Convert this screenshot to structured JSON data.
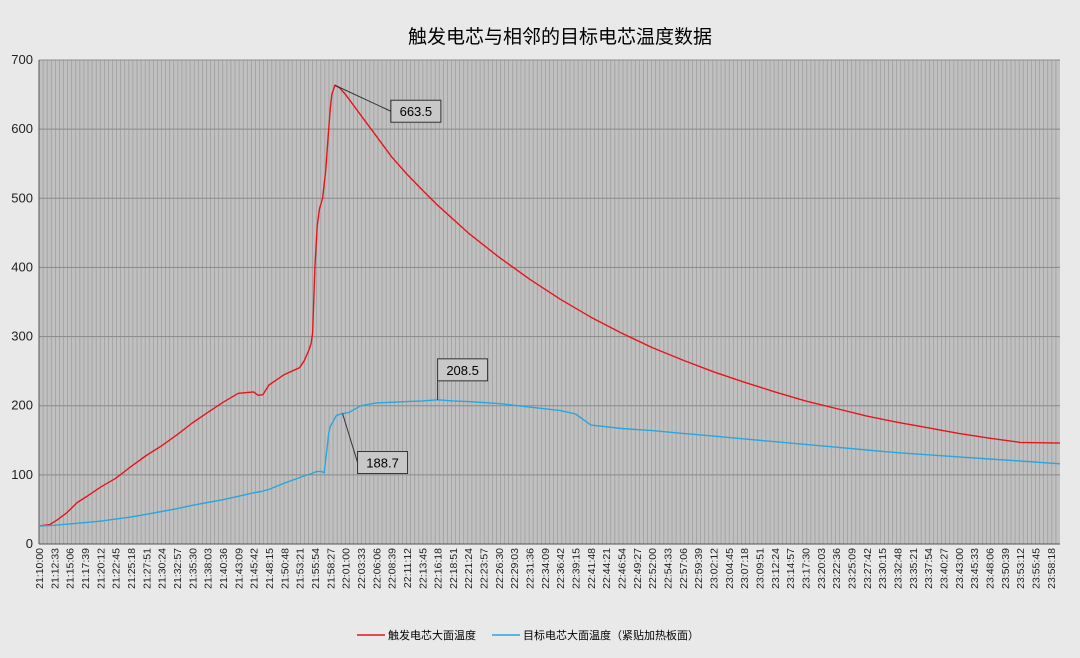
{
  "chart_data": {
    "type": "line",
    "title": "触发电芯与相邻的目标电芯温度数据",
    "xlabel": "",
    "ylabel": "",
    "ylim": [
      0,
      700
    ],
    "yticks": [
      0,
      100,
      200,
      300,
      400,
      500,
      600,
      700
    ],
    "grid": true,
    "legend_position": "bottom",
    "x_tick_labels": [
      "21:10:00",
      "21:12:33",
      "21:15:06",
      "21:17:39",
      "21:20:12",
      "21:22:45",
      "21:25:18",
      "21:27:51",
      "21:30:24",
      "21:32:57",
      "21:35:30",
      "21:38:03",
      "21:40:36",
      "21:43:09",
      "21:45:42",
      "21:48:15",
      "21:50:48",
      "21:53:21",
      "21:55:54",
      "21:58:27",
      "22:01:00",
      "22:03:33",
      "22:06:06",
      "22:08:39",
      "22:11:12",
      "22:13:45",
      "22:16:18",
      "22:18:51",
      "22:21:24",
      "22:23:57",
      "22:26:30",
      "22:29:03",
      "22:31:36",
      "22:34:09",
      "22:36:42",
      "22:39:15",
      "22:41:48",
      "22:44:21",
      "22:46:54",
      "22:49:27",
      "22:52:00",
      "22:54:33",
      "22:57:06",
      "22:59:39",
      "23:02:12",
      "23:04:45",
      "23:07:18",
      "23:09:51",
      "23:12:24",
      "23:14:57",
      "23:17:30",
      "23:20:03",
      "23:22:36",
      "23:25:09",
      "23:27:42",
      "23:30:15",
      "23:32:48",
      "23:35:21",
      "23:37:54",
      "23:40:27",
      "23:43:00",
      "23:45:33",
      "23:48:06",
      "23:50:39",
      "23:53:12",
      "23:55:45",
      "23:58:18"
    ],
    "x_index_max": 66.6,
    "series": [
      {
        "name": "触发电芯大面温度",
        "color": "#e8141b",
        "x": [
          0,
          0.7,
          1.2,
          1.8,
          2.5,
          3.2,
          4.0,
          5.0,
          6.0,
          7.0,
          8.0,
          9.0,
          10.0,
          11.0,
          12.0,
          13.0,
          14.0,
          14.3,
          14.6,
          15.0,
          16.0,
          17.0,
          17.3,
          17.6,
          17.75,
          17.85,
          18.0,
          18.15,
          18.3,
          18.5,
          18.7,
          18.9,
          19.0,
          19.1,
          19.3,
          19.6,
          20.0,
          21.0,
          22.0,
          23.0,
          24.0,
          25.0,
          26.0,
          28.0,
          30.0,
          32.0,
          34.0,
          36.0,
          38.0,
          40.0,
          42.0,
          44.0,
          46.0,
          48.0,
          50.0,
          52.0,
          54.0,
          56.0,
          58.0,
          60.0,
          62.0,
          64.0,
          66.6
        ],
        "values": [
          26,
          28,
          35,
          45,
          60,
          70,
          82,
          95,
          112,
          128,
          142,
          158,
          175,
          190,
          205,
          218,
          220,
          215,
          216,
          230,
          245,
          255,
          265,
          280,
          290,
          305,
          400,
          460,
          485,
          500,
          540,
          600,
          630,
          650,
          663.5,
          660,
          650,
          620,
          590,
          560,
          535,
          512,
          490,
          450,
          415,
          383,
          354,
          328,
          305,
          284,
          266,
          249,
          234,
          220,
          207,
          196,
          185,
          176,
          168,
          160,
          153,
          147,
          146
        ]
      },
      {
        "name": "目标电芯大面温度（紧贴加热板面）",
        "color": "#2aa6de",
        "x": [
          0,
          1.0,
          2.0,
          3.0,
          4.0,
          5.0,
          6.0,
          7.0,
          8.0,
          9.0,
          10.0,
          11.0,
          12.0,
          13.0,
          14.0,
          14.5,
          15.0,
          16.0,
          17.0,
          17.5,
          17.8,
          18.0,
          18.2,
          18.4,
          18.6,
          18.8,
          18.9,
          19.0,
          19.4,
          19.8,
          20.2,
          21.0,
          22.0,
          23.0,
          24.0,
          25.0,
          26.0,
          27.0,
          28.0,
          30.0,
          32.0,
          34.0,
          34.4,
          35.0,
          36.0,
          38.0,
          40.0,
          42.0,
          44.0,
          46.0,
          48.0,
          50.0,
          52.0,
          54.0,
          56.0,
          58.0,
          60.0,
          62.0,
          64.0,
          66.6
        ],
        "values": [
          26,
          27,
          29,
          31,
          33,
          36,
          39,
          43,
          47,
          51,
          56,
          60,
          64,
          69,
          74,
          76,
          79,
          88,
          96,
          100,
          102,
          104,
          105,
          105,
          103,
          140,
          160,
          170,
          186,
          188.7,
          190,
          200,
          204,
          205,
          206,
          207,
          208.5,
          207,
          206,
          203,
          198,
          193,
          191,
          188,
          172,
          167,
          164,
          160,
          156,
          152,
          148,
          144,
          140,
          136,
          132,
          129,
          126,
          123,
          120,
          116
        ]
      }
    ],
    "annotations": [
      {
        "text": "663.5",
        "series": 0,
        "x": 19.3,
        "y": 663.5
      },
      {
        "text": "208.5",
        "series": 1,
        "x": 26.0,
        "y": 208.5
      },
      {
        "text": "188.7",
        "series": 1,
        "x": 19.8,
        "y": 188.7
      }
    ]
  }
}
